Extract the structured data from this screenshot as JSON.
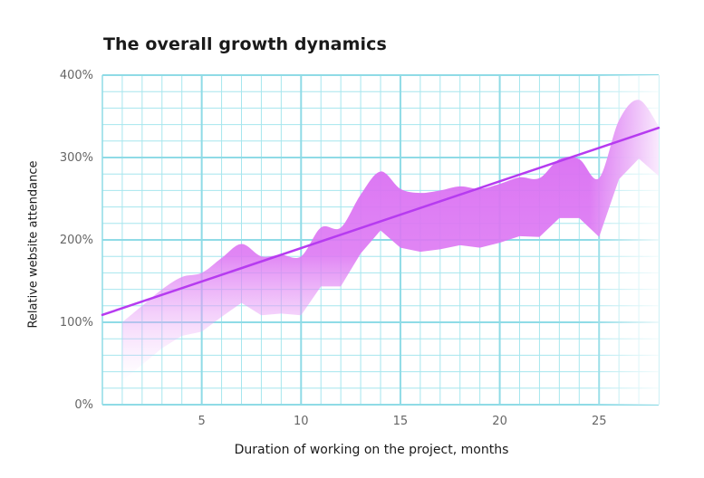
{
  "chart_data": {
    "type": "area",
    "title": "The overall growth dynamics",
    "xlabel": "Duration of working on the project, months",
    "ylabel": "Relative website attendance",
    "xlim": [
      0,
      28
    ],
    "ylim": [
      0,
      400
    ],
    "x_ticks": [
      5,
      10,
      15,
      20,
      25
    ],
    "y_ticks": [
      0,
      100,
      200,
      300,
      400
    ],
    "y_tick_labels": [
      "0%",
      "100%",
      "200%",
      "300%",
      "400%"
    ],
    "grid": true,
    "series": [
      {
        "type": "area",
        "x": [
          1,
          2,
          3,
          4,
          5,
          6,
          7,
          8,
          9,
          10,
          11,
          12,
          13,
          14,
          15,
          16,
          17,
          18,
          19,
          20,
          21,
          22,
          23,
          24,
          25,
          26,
          27,
          28
        ],
        "values": [
          100,
          120,
          140,
          155,
          160,
          178,
          195,
          180,
          182,
          180,
          215,
          215,
          255,
          283,
          262,
          257,
          260,
          265,
          262,
          268,
          276,
          275,
          298,
          298,
          275,
          345,
          370,
          338
        ]
      },
      {
        "type": "trend",
        "x": [
          0,
          28
        ],
        "values": [
          109,
          336
        ]
      }
    ],
    "colors": {
      "area": "#d86cf2",
      "trend": "#b63bf0",
      "grid": "#a6e6ee"
    }
  }
}
